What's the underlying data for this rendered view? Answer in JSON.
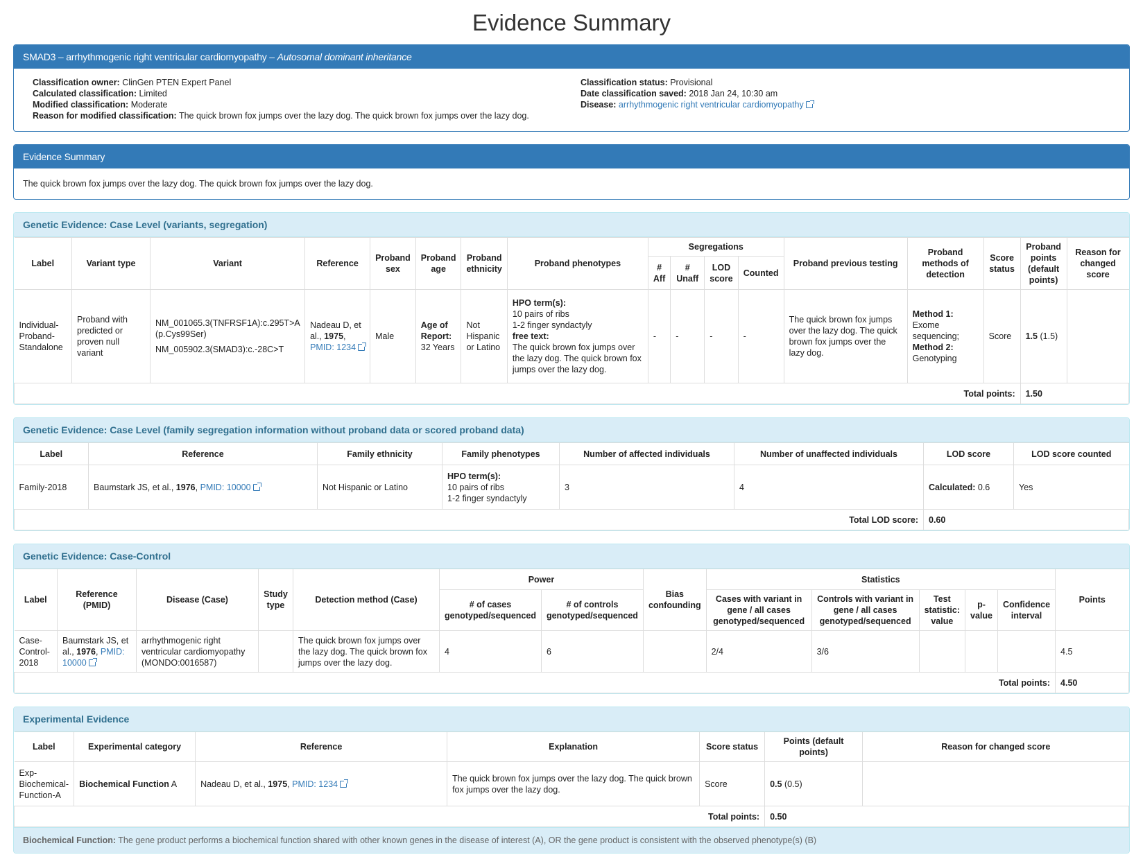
{
  "page_title": "Evidence Summary",
  "classification": {
    "heading_main": "SMAD3 – arrhythmogenic right ventricular cardiomyopathy – ",
    "heading_inheritance": "Autosomal dominant inheritance",
    "owner_label": "Classification owner:",
    "owner": "ClinGen PTEN Expert Panel",
    "calc_label": "Calculated classification:",
    "calc": "Limited",
    "mod_label": "Modified classification:",
    "mod": "Moderate",
    "reason_label": "Reason for modified classification:",
    "reason": "The quick brown fox jumps over the lazy dog. The quick brown fox jumps over the lazy dog.",
    "status_label": "Classification status:",
    "status": "Provisional",
    "date_label": "Date classification saved:",
    "date": "2018 Jan 24, 10:30 am",
    "disease_label": "Disease:",
    "disease": "arrhythmogenic right ventricular cardiomyopathy"
  },
  "evidence_summary": {
    "heading": "Evidence Summary",
    "text": "The quick brown fox jumps over the lazy dog. The quick brown fox jumps over the lazy dog."
  },
  "case_level": {
    "heading": "Genetic Evidence: Case Level (variants, segregation)",
    "headers": {
      "label": "Label",
      "variant_type": "Variant type",
      "variant": "Variant",
      "reference": "Reference",
      "sex": "Proband sex",
      "age": "Proband age",
      "ethnicity": "Proband ethnicity",
      "phenotypes": "Proband phenotypes",
      "segregations": "Segregations",
      "aff": "# Aff",
      "unaff": "# Unaff",
      "lod": "LOD score",
      "counted": "Counted",
      "prev_testing": "Proband previous testing",
      "methods": "Proband methods of detection",
      "score_status": "Score status",
      "points": "Proband points (default points)",
      "reason": "Reason for changed score"
    },
    "row": {
      "label": "Individual-Proband-Standalone",
      "variant_type": "Proband with predicted or proven null variant",
      "variant1": "NM_001065.3(TNFRSF1A):c.295T>A (p.Cys99Ser)",
      "variant2": "NM_005902.3(SMAD3):c.-28C>T",
      "ref_author": "Nadeau D, et al., ",
      "ref_year": "1975",
      "ref_pmid": "PMID: 1234",
      "sex": "Male",
      "age_label": "Age of Report:",
      "age": "32 Years",
      "ethnicity": "Not Hispanic or Latino",
      "hpo_label": "HPO term(s):",
      "hpo1": "10 pairs of ribs",
      "hpo2": "1-2 finger syndactyly",
      "free_label": "free text:",
      "free_text": "The quick brown fox jumps over the lazy dog. The quick brown fox jumps over the lazy dog.",
      "aff": "-",
      "unaff": "-",
      "lod": "-",
      "counted": "-",
      "prev_testing": "The quick brown fox jumps over the lazy dog. The quick brown fox jumps over the lazy dog.",
      "m1_label": "Method 1:",
      "m1": "Exome sequencing;",
      "m2_label": "Method 2:",
      "m2": "Genotyping",
      "score_status": "Score",
      "points": "1.5",
      "points_default": "(1.5)",
      "reason": ""
    },
    "total_label": "Total points:",
    "total": "1.50"
  },
  "family": {
    "heading": "Genetic Evidence: Case Level (family segregation information without proband data or scored proband data)",
    "headers": {
      "label": "Label",
      "reference": "Reference",
      "ethnicity": "Family ethnicity",
      "phenotypes": "Family phenotypes",
      "affected": "Number of affected individuals",
      "unaffected": "Number of unaffected individuals",
      "lod": "LOD score",
      "lod_counted": "LOD score counted"
    },
    "row": {
      "label": "Family-2018",
      "ref_author": "Baumstark JS, et al., ",
      "ref_year": "1976",
      "ref_pmid": "PMID: 10000",
      "ethnicity": "Not Hispanic or Latino",
      "hpo_label": "HPO term(s):",
      "hpo1": "10 pairs of ribs",
      "hpo2": "1-2 finger syndactyly",
      "affected": "3",
      "unaffected": "4",
      "lod_label": "Calculated:",
      "lod": "0.6",
      "lod_counted": "Yes"
    },
    "total_label": "Total LOD score:",
    "total": "0.60"
  },
  "case_control": {
    "heading": "Genetic Evidence: Case-Control",
    "headers": {
      "label": "Label",
      "reference": "Reference (PMID)",
      "disease": "Disease (Case)",
      "study_type": "Study type",
      "detection": "Detection method (Case)",
      "power": "Power",
      "cases": "# of cases genotyped/sequenced",
      "controls": "# of controls genotyped/sequenced",
      "bias": "Bias confounding",
      "statistics": "Statistics",
      "cases_variant": "Cases with variant in gene / all cases genotyped/sequenced",
      "controls_variant": "Controls with variant in gene / all cases genotyped/sequenced",
      "test_stat": "Test statistic: value",
      "pvalue": "p-value",
      "ci": "Confidence interval",
      "points": "Points"
    },
    "row": {
      "label": "Case-Control-2018",
      "ref_author": "Baumstark JS, et al., ",
      "ref_year": "1976",
      "ref_pmid": "PMID: 10000",
      "disease": "arrhythmogenic right ventricular cardiomyopathy (MONDO:0016587)",
      "study_type": "",
      "detection": "The quick brown fox jumps over the lazy dog. The quick brown fox jumps over the lazy dog.",
      "cases": "4",
      "controls": "6",
      "bias": "",
      "cases_variant": "2/4",
      "controls_variant": "3/6",
      "test_stat": "",
      "pvalue": "",
      "ci": "",
      "points": "4.5"
    },
    "total_label": "Total points:",
    "total": "4.50"
  },
  "experimental": {
    "heading": "Experimental Evidence",
    "headers": {
      "label": "Label",
      "category": "Experimental category",
      "reference": "Reference",
      "explanation": "Explanation",
      "score_status": "Score status",
      "points": "Points (default points)",
      "reason": "Reason for changed score"
    },
    "row": {
      "label": "Exp-Biochemical-Function-A",
      "category_bold": "Biochemical Function",
      "category_suffix": " A",
      "ref_author": "Nadeau D, et al., ",
      "ref_year": "1975",
      "ref_pmid": "PMID: 1234",
      "explanation": "The quick brown fox jumps over the lazy dog. The quick brown fox jumps over the lazy dog.",
      "score_status": "Score",
      "points": "0.5",
      "points_default": "(0.5)",
      "reason": ""
    },
    "total_label": "Total points:",
    "total": "0.50",
    "footnote_label": "Biochemical Function:",
    "footnote": "The gene product performs a biochemical function shared with other known genes in the disease of interest (A), OR the gene product is consistent with the observed phenotype(s) (B)"
  }
}
